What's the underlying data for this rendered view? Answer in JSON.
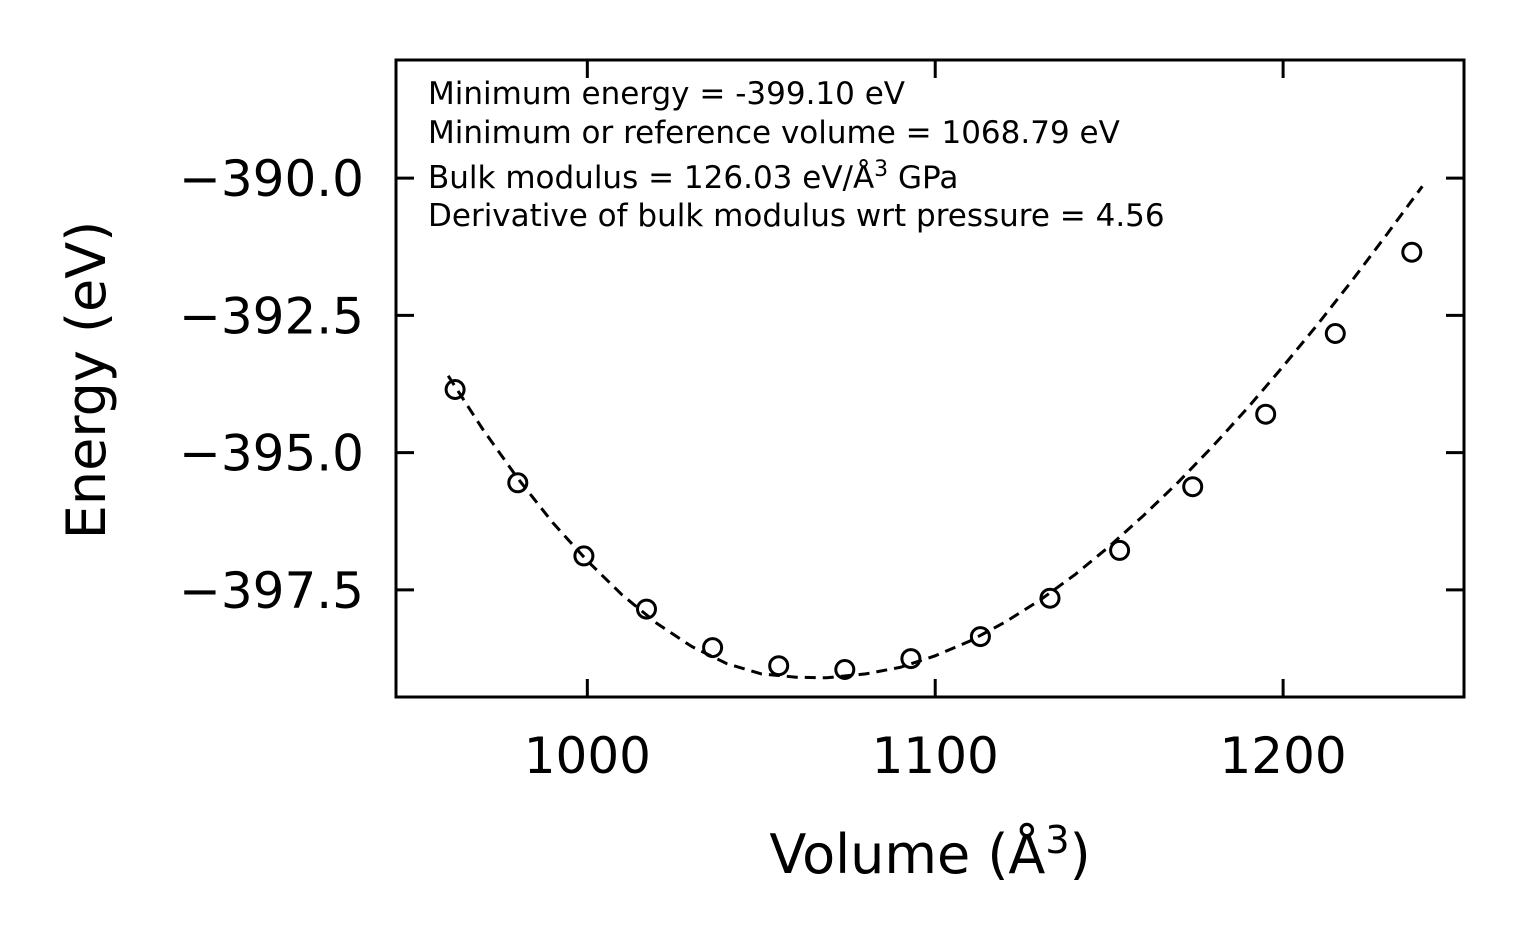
{
  "chart_data": {
    "type": "scatter",
    "title": "",
    "xlabel": "Volume (Å",
    "xlabel_sup": "3",
    "xlabel_end": ")",
    "ylabel": "Energy (eV)",
    "xlim": [
      945,
      1252
    ],
    "ylim": [
      -399.45,
      -387.85
    ],
    "xticks": [
      {
        "value": 1000,
        "label": "1000"
      },
      {
        "value": 1100,
        "label": "1100"
      },
      {
        "value": 1200,
        "label": "1200"
      }
    ],
    "yticks": [
      {
        "value": -390.0,
        "label": "−390.0"
      },
      {
        "value": -392.5,
        "label": "−392.5"
      },
      {
        "value": -395.0,
        "label": "−395.0"
      },
      {
        "value": -397.5,
        "label": "−397.5"
      }
    ],
    "series": [
      {
        "name": "data",
        "style": "open-circle",
        "x": [
          962,
          980,
          999,
          1017,
          1036,
          1055,
          1074,
          1093,
          1113,
          1133,
          1153,
          1174,
          1195,
          1215,
          1237
        ],
        "y": [
          -393.85,
          -395.55,
          -396.88,
          -397.85,
          -398.55,
          -398.88,
          -398.95,
          -398.75,
          -398.35,
          -397.65,
          -396.78,
          -395.62,
          -394.3,
          -392.83,
          -391.35
        ]
      },
      {
        "name": "fit",
        "style": "dashed-line",
        "x": [
          960,
          970,
          980,
          990,
          1000,
          1010,
          1020,
          1030,
          1040,
          1050,
          1060,
          1068.79,
          1080,
          1090,
          1100,
          1110,
          1120,
          1130,
          1140,
          1150,
          1160,
          1170,
          1180,
          1190,
          1200,
          1210,
          1220,
          1230,
          1240
        ],
        "y": [
          -393.6,
          -394.58,
          -395.47,
          -396.27,
          -396.97,
          -397.59,
          -398.11,
          -398.53,
          -398.84,
          -399.03,
          -399.09,
          -399.1,
          -399.03,
          -398.91,
          -398.7,
          -398.43,
          -398.09,
          -397.69,
          -397.23,
          -396.71,
          -396.14,
          -395.53,
          -394.87,
          -394.17,
          -393.43,
          -392.66,
          -391.85,
          -391.01,
          -390.15
        ]
      }
    ],
    "annotations": [
      {
        "text": "Minimum energy = -399.10 eV"
      },
      {
        "text": "Minimum or reference volume = 1068.79 eV"
      },
      {
        "text": "Bulk modulus = 126.03 eV/Å",
        "sup": "3",
        "tail": " GPa"
      },
      {
        "text": "Derivative of bulk modulus wrt pressure = 4.56"
      }
    ],
    "grid": false,
    "legend": "none",
    "colors": {
      "line": "#000000",
      "marker": "#000000",
      "background": "#ffffff"
    }
  }
}
